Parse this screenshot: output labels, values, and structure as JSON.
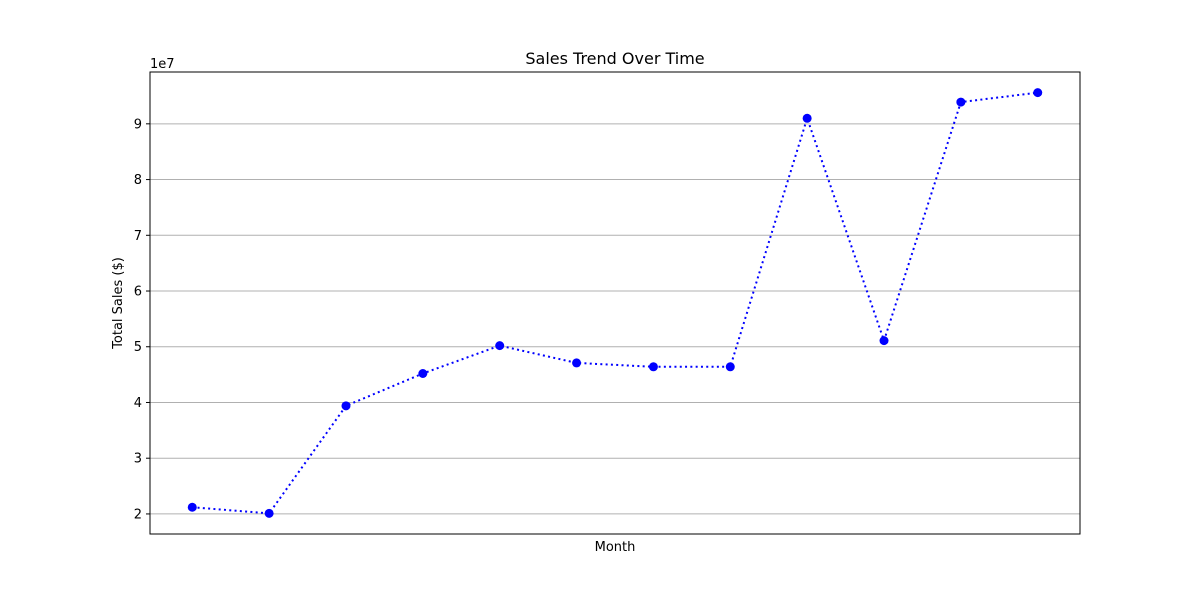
{
  "chart_data": {
    "type": "line",
    "title": "Sales Trend Over Time",
    "xlabel": "Month",
    "ylabel": "Total Sales ($)",
    "y_offset_text": "1e7",
    "x": [
      1,
      2,
      3,
      4,
      5,
      6,
      7,
      8,
      9,
      10,
      11,
      12
    ],
    "series": [
      {
        "values": [
          21200000,
          20100000,
          39400000,
          45200000,
          50200000,
          47100000,
          46400000,
          46400000,
          91000000,
          51100000,
          93900000,
          95600000
        ],
        "color": "#0000ff",
        "line_style": "dotted",
        "marker": "circle"
      }
    ],
    "xlim": [
      0.45,
      12.55
    ],
    "ylim": [
      16400000,
      99300000
    ],
    "y_ticks": [
      {
        "value": 20000000,
        "label": "2"
      },
      {
        "value": 30000000,
        "label": "3"
      },
      {
        "value": 40000000,
        "label": "4"
      },
      {
        "value": 50000000,
        "label": "5"
      },
      {
        "value": 60000000,
        "label": "6"
      },
      {
        "value": 70000000,
        "label": "7"
      },
      {
        "value": 80000000,
        "label": "8"
      },
      {
        "value": 90000000,
        "label": "9"
      }
    ],
    "x_tick_labels_shown": false,
    "grid": "y-major",
    "grid_color": "#b0b0b0",
    "legend": "none"
  }
}
